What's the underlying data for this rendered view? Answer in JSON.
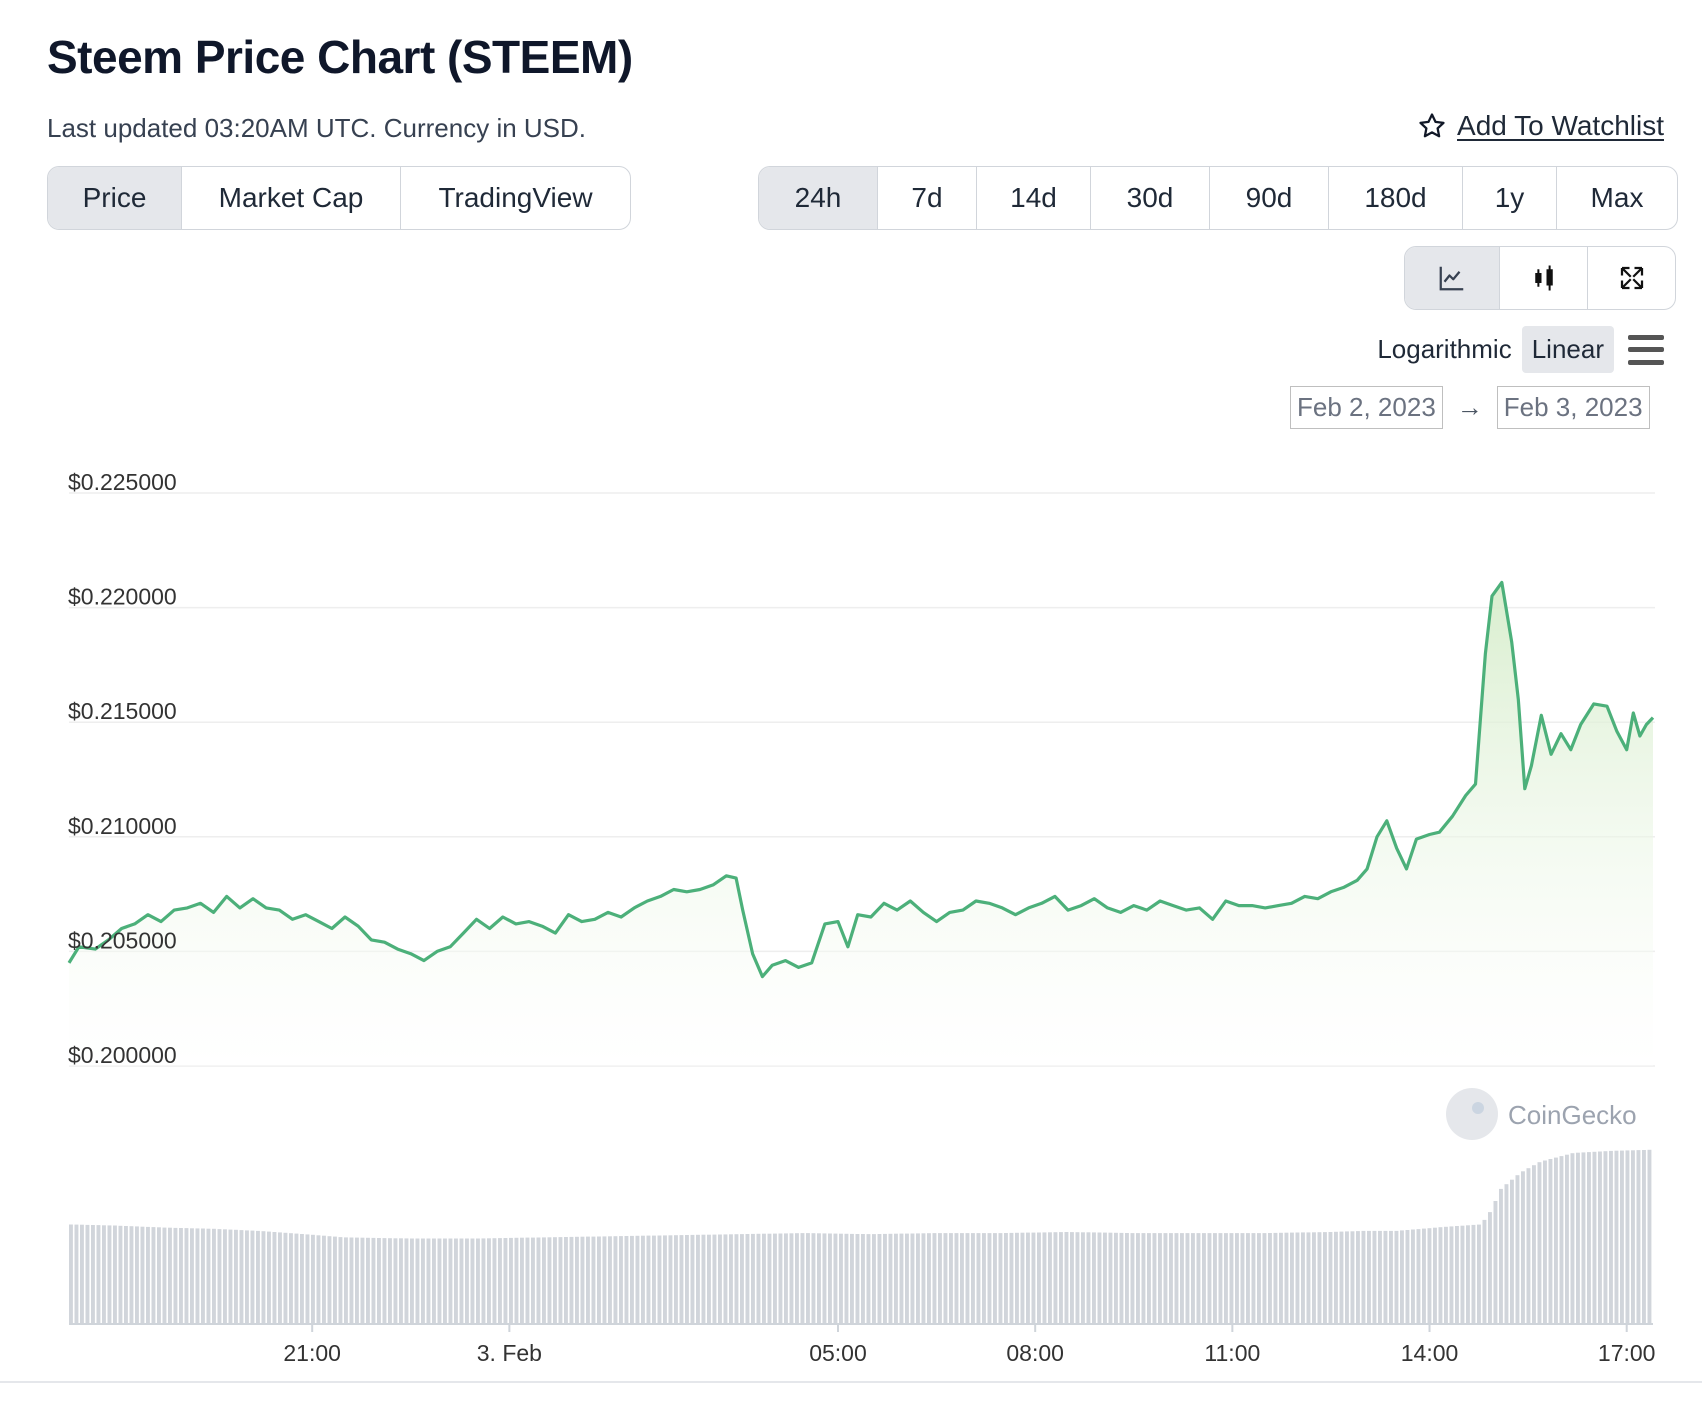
{
  "header": {
    "title": "Steem Price Chart (STEEM)",
    "subtitle": "Last updated 03:20AM UTC. Currency in USD.",
    "watchlist_label": "Add To Watchlist"
  },
  "tabs": [
    {
      "label": "Price",
      "active": true
    },
    {
      "label": "Market Cap",
      "active": false
    },
    {
      "label": "TradingView",
      "active": false
    }
  ],
  "ranges": [
    {
      "label": "24h",
      "active": true
    },
    {
      "label": "7d",
      "active": false
    },
    {
      "label": "14d",
      "active": false
    },
    {
      "label": "30d",
      "active": false
    },
    {
      "label": "90d",
      "active": false
    },
    {
      "label": "180d",
      "active": false
    },
    {
      "label": "1y",
      "active": false
    },
    {
      "label": "Max",
      "active": false
    }
  ],
  "tools": [
    {
      "name": "line-chart-icon",
      "active": true
    },
    {
      "name": "candlestick-icon",
      "active": false
    },
    {
      "name": "fullscreen-icon",
      "active": false
    }
  ],
  "scale": {
    "logarithmic": "Logarithmic",
    "linear": "Linear",
    "active": "Linear"
  },
  "date_range": {
    "from": "Feb 2, 2023",
    "to": "Feb 3, 2023"
  },
  "watermark": "CoinGecko",
  "colors": {
    "line": "#4cb07a",
    "fill": "#e6f4e0",
    "volume": "#d1d5db",
    "grid": "#eeeeee"
  },
  "chart_data": {
    "type": "line",
    "title": "Steem Price Chart (STEEM)",
    "ylim": [
      0.2,
      0.225
    ],
    "yticks": [
      "$0.225000",
      "$0.220000",
      "$0.215000",
      "$0.210000",
      "$0.205000",
      "$0.200000"
    ],
    "ytick_values": [
      0.225,
      0.22,
      0.215,
      0.21,
      0.205,
      0.2
    ],
    "xlim_hours": [
      17.3,
      41.4
    ],
    "xticks": [
      {
        "label": "21:00",
        "t": 21
      },
      {
        "label": "3. Feb",
        "t": 24
      },
      {
        "label": "05:00",
        "t": 29
      },
      {
        "label": "08:00",
        "t": 32
      },
      {
        "label": "11:00",
        "t": 35
      },
      {
        "label": "14:00",
        "t": 38
      },
      {
        "label": "17:00",
        "t": 41
      }
    ],
    "series": [
      {
        "name": "Price",
        "points": [
          [
            17.3,
            0.2045
          ],
          [
            17.45,
            0.2052
          ],
          [
            17.7,
            0.2051
          ],
          [
            17.9,
            0.2055
          ],
          [
            18.1,
            0.206
          ],
          [
            18.3,
            0.2062
          ],
          [
            18.5,
            0.2066
          ],
          [
            18.7,
            0.2063
          ],
          [
            18.9,
            0.2068
          ],
          [
            19.1,
            0.2069
          ],
          [
            19.3,
            0.2071
          ],
          [
            19.5,
            0.2067
          ],
          [
            19.7,
            0.2074
          ],
          [
            19.9,
            0.2069
          ],
          [
            20.1,
            0.2073
          ],
          [
            20.3,
            0.2069
          ],
          [
            20.5,
            0.2068
          ],
          [
            20.7,
            0.2064
          ],
          [
            20.9,
            0.2066
          ],
          [
            21.1,
            0.2063
          ],
          [
            21.3,
            0.206
          ],
          [
            21.5,
            0.2065
          ],
          [
            21.7,
            0.2061
          ],
          [
            21.9,
            0.2055
          ],
          [
            22.1,
            0.2054
          ],
          [
            22.3,
            0.2051
          ],
          [
            22.5,
            0.2049
          ],
          [
            22.7,
            0.2046
          ],
          [
            22.9,
            0.205
          ],
          [
            23.1,
            0.2052
          ],
          [
            23.3,
            0.2058
          ],
          [
            23.5,
            0.2064
          ],
          [
            23.7,
            0.206
          ],
          [
            23.9,
            0.2065
          ],
          [
            24.1,
            0.2062
          ],
          [
            24.3,
            0.2063
          ],
          [
            24.5,
            0.2061
          ],
          [
            24.7,
            0.2058
          ],
          [
            24.9,
            0.2066
          ],
          [
            25.1,
            0.2063
          ],
          [
            25.3,
            0.2064
          ],
          [
            25.5,
            0.2067
          ],
          [
            25.7,
            0.2065
          ],
          [
            25.9,
            0.2069
          ],
          [
            26.1,
            0.2072
          ],
          [
            26.3,
            0.2074
          ],
          [
            26.5,
            0.2077
          ],
          [
            26.7,
            0.2076
          ],
          [
            26.9,
            0.2077
          ],
          [
            27.1,
            0.2079
          ],
          [
            27.3,
            0.2083
          ],
          [
            27.45,
            0.2082
          ],
          [
            27.55,
            0.2068
          ],
          [
            27.7,
            0.2049
          ],
          [
            27.85,
            0.2039
          ],
          [
            28.0,
            0.2044
          ],
          [
            28.2,
            0.2046
          ],
          [
            28.4,
            0.2043
          ],
          [
            28.6,
            0.2045
          ],
          [
            28.8,
            0.2062
          ],
          [
            29.0,
            0.2063
          ],
          [
            29.15,
            0.2052
          ],
          [
            29.3,
            0.2066
          ],
          [
            29.5,
            0.2065
          ],
          [
            29.7,
            0.2071
          ],
          [
            29.9,
            0.2068
          ],
          [
            30.1,
            0.2072
          ],
          [
            30.3,
            0.2067
          ],
          [
            30.5,
            0.2063
          ],
          [
            30.7,
            0.2067
          ],
          [
            30.9,
            0.2068
          ],
          [
            31.1,
            0.2072
          ],
          [
            31.3,
            0.2071
          ],
          [
            31.5,
            0.2069
          ],
          [
            31.7,
            0.2066
          ],
          [
            31.9,
            0.2069
          ],
          [
            32.1,
            0.2071
          ],
          [
            32.3,
            0.2074
          ],
          [
            32.5,
            0.2068
          ],
          [
            32.7,
            0.207
          ],
          [
            32.9,
            0.2073
          ],
          [
            33.1,
            0.2069
          ],
          [
            33.3,
            0.2067
          ],
          [
            33.5,
            0.207
          ],
          [
            33.7,
            0.2068
          ],
          [
            33.9,
            0.2072
          ],
          [
            34.1,
            0.207
          ],
          [
            34.3,
            0.2068
          ],
          [
            34.5,
            0.2069
          ],
          [
            34.7,
            0.2064
          ],
          [
            34.9,
            0.2072
          ],
          [
            35.1,
            0.207
          ],
          [
            35.3,
            0.207
          ],
          [
            35.5,
            0.2069
          ],
          [
            35.7,
            0.207
          ],
          [
            35.9,
            0.2071
          ],
          [
            36.1,
            0.2074
          ],
          [
            36.3,
            0.2073
          ],
          [
            36.5,
            0.2076
          ],
          [
            36.7,
            0.2078
          ],
          [
            36.9,
            0.2081
          ],
          [
            37.05,
            0.2086
          ],
          [
            37.2,
            0.21
          ],
          [
            37.35,
            0.2107
          ],
          [
            37.5,
            0.2095
          ],
          [
            37.65,
            0.2086
          ],
          [
            37.8,
            0.2099
          ],
          [
            38.0,
            0.2101
          ],
          [
            38.15,
            0.2102
          ],
          [
            38.35,
            0.2109
          ],
          [
            38.55,
            0.2118
          ],
          [
            38.7,
            0.2123
          ],
          [
            38.85,
            0.218
          ],
          [
            38.95,
            0.2205
          ],
          [
            39.1,
            0.2211
          ],
          [
            39.25,
            0.2185
          ],
          [
            39.35,
            0.216
          ],
          [
            39.45,
            0.2121
          ],
          [
            39.55,
            0.2131
          ],
          [
            39.7,
            0.2153
          ],
          [
            39.85,
            0.2136
          ],
          [
            40.0,
            0.2145
          ],
          [
            40.15,
            0.2138
          ],
          [
            40.3,
            0.2149
          ],
          [
            40.5,
            0.2158
          ],
          [
            40.7,
            0.2157
          ],
          [
            40.85,
            0.2146
          ],
          [
            41.0,
            0.2138
          ],
          [
            41.1,
            0.2154
          ],
          [
            41.2,
            0.2144
          ],
          [
            41.3,
            0.2149
          ],
          [
            41.4,
            0.2152
          ]
        ]
      },
      {
        "name": "Volume",
        "points": [
          [
            17.3,
            0.92
          ],
          [
            18.0,
            0.91
          ],
          [
            18.8,
            0.89
          ],
          [
            19.5,
            0.88
          ],
          [
            20.2,
            0.86
          ],
          [
            20.9,
            0.83
          ],
          [
            21.5,
            0.8
          ],
          [
            22.5,
            0.79
          ],
          [
            23.5,
            0.79
          ],
          [
            24.5,
            0.8
          ],
          [
            25.5,
            0.81
          ],
          [
            26.5,
            0.82
          ],
          [
            27.5,
            0.83
          ],
          [
            28.5,
            0.84
          ],
          [
            29.5,
            0.83
          ],
          [
            30.5,
            0.84
          ],
          [
            31.5,
            0.84
          ],
          [
            32.5,
            0.85
          ],
          [
            33.5,
            0.84
          ],
          [
            34.5,
            0.84
          ],
          [
            35.5,
            0.84
          ],
          [
            36.5,
            0.85
          ],
          [
            37.0,
            0.86
          ],
          [
            37.5,
            0.86
          ],
          [
            38.3,
            0.9
          ],
          [
            38.8,
            0.92
          ],
          [
            38.95,
            1.05
          ],
          [
            39.1,
            1.25
          ],
          [
            39.4,
            1.4
          ],
          [
            39.7,
            1.5
          ],
          [
            40.2,
            1.58
          ],
          [
            40.8,
            1.6
          ],
          [
            41.4,
            1.61
          ]
        ]
      }
    ]
  }
}
